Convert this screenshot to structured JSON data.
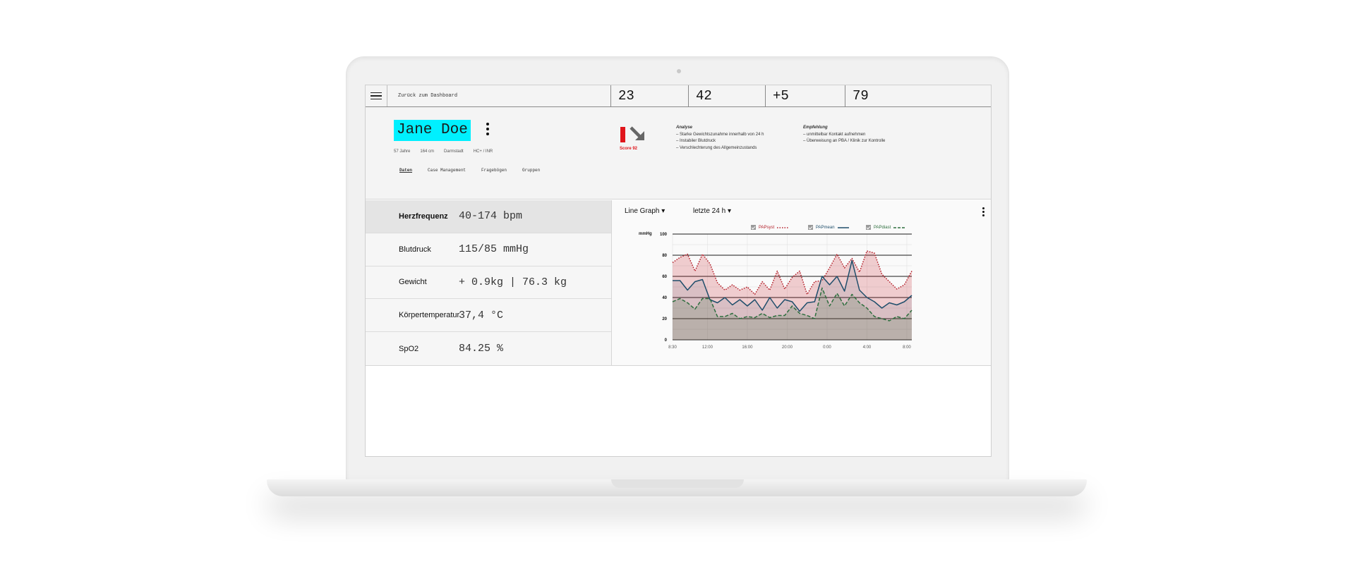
{
  "topbar": {
    "back_label": "Zurück zum Dashboard",
    "stats": [
      "23",
      "42",
      "+5",
      "79"
    ]
  },
  "patient": {
    "name": "Jane Doe",
    "age": "57 Jahre",
    "height": "164 cm",
    "city": "Darmstadt",
    "tags": "HC+ / INR"
  },
  "score": {
    "label": "Score 92",
    "color": "#e0151b"
  },
  "analysis": {
    "title": "Analyse",
    "items": [
      "– Starke Gewichtszunahme innerhalb von 24 h",
      "– Instabiler Blutdruck",
      "– Verschlechterung des Allgemeinzustands"
    ]
  },
  "recommendation": {
    "title": "Empfehlung",
    "items": [
      "– unmittelbar Kontakt aufnehmen",
      "– Überweisung an PBA / Klinik zur Kontrolle"
    ]
  },
  "tabs": [
    "Daten",
    "Case Management",
    "Fragebögen",
    "Gruppen"
  ],
  "vitals": [
    {
      "label": "Herzfrequenz",
      "value": "40-174 bpm"
    },
    {
      "label": "Blutdruck",
      "value": "115/85 mmHg"
    },
    {
      "label": "Gewicht",
      "value": "+ 0.9kg | 76.3 kg"
    },
    {
      "label": "Körpertemperatur",
      "value": "37,4 °C"
    },
    {
      "label": "SpO2",
      "value": "84.25 %"
    }
  ],
  "chart_controls": {
    "type_select": "Line Graph",
    "range_select": "letzte 24 h"
  },
  "colors": {
    "highlight": "#00f0ff",
    "papsyst": "#b3202a",
    "papmean": "#1f4e6b",
    "papdiast": "#2e6e3e"
  },
  "chart_data": {
    "type": "line",
    "ylabel": "mmHg",
    "ylim": [
      0,
      100
    ],
    "yticks": [
      0,
      20,
      40,
      60,
      80,
      100
    ],
    "xlim": [
      0,
      24
    ],
    "xticks": [
      {
        "x": 0,
        "label": "8:30"
      },
      {
        "x": 3.5,
        "label": "12:00"
      },
      {
        "x": 7.5,
        "label": "16:00"
      },
      {
        "x": 11.5,
        "label": "20:00"
      },
      {
        "x": 15.5,
        "label": "0:00"
      },
      {
        "x": 19.5,
        "label": "4:00"
      },
      {
        "x": 23.5,
        "label": "8:00"
      }
    ],
    "x": [
      0,
      0.75,
      1.5,
      2.25,
      3,
      3.75,
      4.5,
      5.25,
      6,
      6.75,
      7.5,
      8.25,
      9,
      9.75,
      10.5,
      11.25,
      12,
      12.75,
      13.5,
      14.25,
      15,
      15.75,
      16.5,
      17.25,
      18,
      18.75,
      19.5,
      20.25,
      21,
      21.75,
      22.5,
      23.25,
      24
    ],
    "series": [
      {
        "name": "PAPsyst",
        "style": "dotted",
        "values": [
          73,
          78,
          81,
          65,
          81,
          72,
          54,
          47,
          52,
          47,
          50,
          43,
          55,
          47,
          65,
          48,
          59,
          65,
          43,
          55,
          56,
          68,
          81,
          68,
          77,
          64,
          84,
          82,
          62,
          55,
          48,
          52,
          65
        ]
      },
      {
        "name": "PAPmean",
        "style": "solid",
        "values": [
          56,
          56,
          47,
          55,
          57,
          38,
          35,
          40,
          33,
          38,
          32,
          38,
          28,
          40,
          30,
          38,
          36,
          27,
          35,
          36,
          60,
          52,
          60,
          46,
          75,
          47,
          40,
          36,
          30,
          35,
          33,
          36,
          42
        ]
      },
      {
        "name": "PAPdiast",
        "style": "dashed",
        "values": [
          36,
          39,
          35,
          29,
          39,
          39,
          22,
          22,
          25,
          20,
          22,
          21,
          25,
          21,
          23,
          23,
          32,
          25,
          23,
          20,
          49,
          32,
          44,
          32,
          43,
          35,
          30,
          22,
          20,
          18,
          22,
          20,
          28
        ]
      }
    ]
  }
}
